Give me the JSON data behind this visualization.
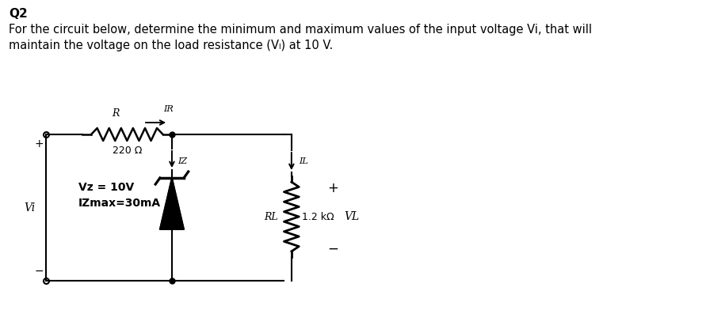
{
  "title": "Q2",
  "description_line1": "For the circuit below, determine the minimum and maximum values of the input voltage Vi, that will",
  "description_line2": "maintain the voltage on the load resistance (Vₗ) at 10 V.",
  "bg_color": "#ffffff",
  "text_color": "#000000",
  "font_size_title": 11,
  "font_size_body": 10.5,
  "circuit": {
    "resistor_label": "R",
    "resistor_value": "220 Ω",
    "current_R_label": "IR",
    "current_Z_label": "IZ",
    "current_L_label": "IL",
    "zener_Vz": "Vz = 10V",
    "zener_Iz": "IZmax=30mA",
    "RL_label": "RL",
    "RL_value": "1.2 kΩ",
    "VL_label": "VL",
    "Vi_label": "Vi"
  }
}
